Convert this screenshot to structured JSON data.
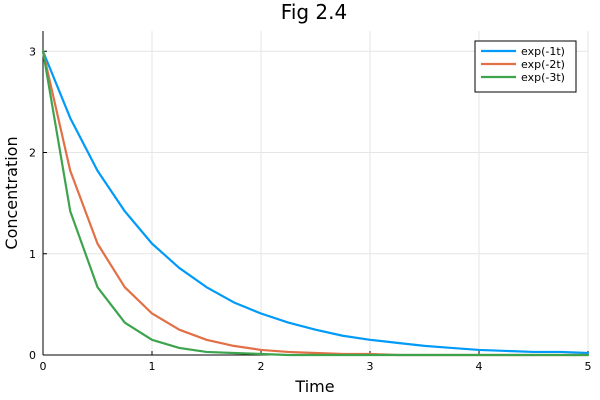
{
  "chart_data": {
    "type": "line",
    "title": "Fig 2.4",
    "xlabel": "Time",
    "ylabel": "Concentration",
    "xlim": [
      0,
      5
    ],
    "ylim": [
      0,
      3.2
    ],
    "x_ticks": [
      0,
      1,
      2,
      3,
      4,
      5
    ],
    "x_tick_labels": [
      "0",
      "1",
      "2",
      "3",
      "4",
      "5"
    ],
    "y_ticks": [
      0,
      1,
      2,
      3
    ],
    "y_tick_labels": [
      "0",
      "1",
      "2",
      "3"
    ],
    "grid": true,
    "legend_position": "top-right",
    "x": [
      0,
      0.25,
      0.5,
      0.75,
      1,
      1.25,
      1.5,
      1.75,
      2,
      2.25,
      2.5,
      2.75,
      3,
      3.25,
      3.5,
      3.75,
      4,
      4.25,
      4.5,
      4.75,
      5
    ],
    "series": [
      {
        "name": "exp(-1t)",
        "color": "#009af9",
        "values": [
          3.0,
          2.34,
          1.82,
          1.42,
          1.1,
          0.86,
          0.67,
          0.52,
          0.41,
          0.32,
          0.25,
          0.19,
          0.15,
          0.12,
          0.09,
          0.07,
          0.05,
          0.04,
          0.03,
          0.03,
          0.02
        ]
      },
      {
        "name": "exp(-2t)",
        "color": "#e26f46",
        "values": [
          3.0,
          1.82,
          1.1,
          0.67,
          0.41,
          0.25,
          0.15,
          0.09,
          0.05,
          0.03,
          0.02,
          0.01,
          0.01,
          0.0,
          0.0,
          0.0,
          0.0,
          0.0,
          0.0,
          0.0,
          0.0
        ]
      },
      {
        "name": "exp(-3t)",
        "color": "#3da44d",
        "values": [
          3.0,
          1.42,
          0.67,
          0.32,
          0.15,
          0.07,
          0.03,
          0.02,
          0.01,
          0.0,
          0.0,
          0.0,
          0.0,
          0.0,
          0.0,
          0.0,
          0.0,
          0.0,
          0.0,
          0.0,
          0.0
        ]
      }
    ]
  }
}
